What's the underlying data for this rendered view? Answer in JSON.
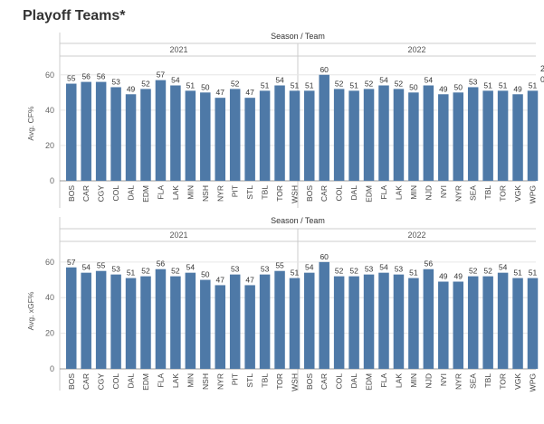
{
  "page": {
    "title": "Playoff Teams*",
    "overflow_labels_right": [
      "2",
      "0"
    ]
  },
  "colors": {
    "bar": "#4e79a7",
    "grid": "#e6e6e6",
    "divider": "#cccccc",
    "text": "#333333"
  },
  "chart_data": [
    {
      "type": "bar",
      "header": "Season / Team",
      "ylabel": "Avg. CF%",
      "ylim": [
        0,
        65
      ],
      "yticks": [
        0,
        20,
        40,
        60
      ],
      "groups": [
        {
          "season": "2021",
          "categories": [
            "BOS",
            "CAR",
            "CGY",
            "COL",
            "DAL",
            "EDM",
            "FLA",
            "LAK",
            "MIN",
            "NSH",
            "NYR",
            "PIT",
            "STL",
            "TBL",
            "TOR",
            "WSH"
          ],
          "values": [
            55,
            56,
            56,
            53,
            49,
            52,
            57,
            54,
            51,
            50,
            47,
            52,
            47,
            51,
            54,
            51
          ]
        },
        {
          "season": "2022",
          "categories": [
            "BOS",
            "CAR",
            "COL",
            "DAL",
            "EDM",
            "FLA",
            "LAK",
            "MIN",
            "NJD",
            "NYI",
            "NYR",
            "SEA",
            "TBL",
            "TOR",
            "VGK",
            "WPG"
          ],
          "values": [
            51,
            60,
            52,
            51,
            52,
            54,
            52,
            50,
            54,
            49,
            50,
            53,
            51,
            51,
            49,
            51
          ]
        }
      ]
    },
    {
      "type": "bar",
      "header": "Season / Team",
      "ylabel": "Avg. xGF%",
      "ylim": [
        0,
        65
      ],
      "yticks": [
        0,
        20,
        40,
        60
      ],
      "groups": [
        {
          "season": "2021",
          "categories": [
            "BOS",
            "CAR",
            "CGY",
            "COL",
            "DAL",
            "EDM",
            "FLA",
            "LAK",
            "MIN",
            "NSH",
            "NYR",
            "PIT",
            "STL",
            "TBL",
            "TOR",
            "WSH"
          ],
          "values": [
            57,
            54,
            55,
            53,
            51,
            52,
            56,
            52,
            54,
            50,
            47,
            53,
            47,
            53,
            55,
            51
          ]
        },
        {
          "season": "2022",
          "categories": [
            "BOS",
            "CAR",
            "COL",
            "DAL",
            "EDM",
            "FLA",
            "LAK",
            "MIN",
            "NJD",
            "NYI",
            "NYR",
            "SEA",
            "TBL",
            "TOR",
            "VGK",
            "WPG"
          ],
          "values": [
            54,
            60,
            52,
            52,
            53,
            54,
            53,
            51,
            56,
            49,
            49,
            52,
            52,
            54,
            51,
            51
          ]
        }
      ]
    }
  ]
}
